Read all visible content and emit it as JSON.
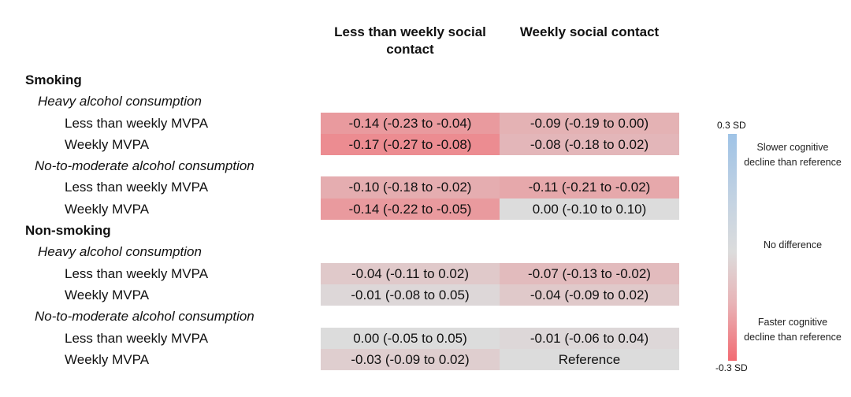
{
  "chart_data": {
    "type": "heatmap",
    "title": "",
    "column_headers": [
      "Less than weekly social contact",
      "Weekly social contact"
    ],
    "rows": [
      {
        "level": 0,
        "label": "Smoking",
        "cells": null
      },
      {
        "level": 1,
        "label": "Heavy alcohol consumption",
        "cells": null
      },
      {
        "level": 2,
        "label": "Less than weekly MVPA",
        "cells": [
          {
            "text": "-0.14 (-0.23 to -0.04)",
            "value": -0.14
          },
          {
            "text": "-0.09 (-0.19 to 0.00)",
            "value": -0.09
          }
        ]
      },
      {
        "level": 2,
        "label": "Weekly MVPA",
        "cells": [
          {
            "text": "-0.17 (-0.27 to -0.08)",
            "value": -0.17
          },
          {
            "text": "-0.08 (-0.18 to 0.02)",
            "value": -0.08
          }
        ]
      },
      {
        "level": 1,
        "label": "No-to-moderate alcohol consumption",
        "cells": null
      },
      {
        "level": 2,
        "label": "Less than weekly MVPA",
        "cells": [
          {
            "text": "-0.10 (-0.18 to -0.02)",
            "value": -0.1
          },
          {
            "text": "-0.11 (-0.21 to -0.02)",
            "value": -0.11
          }
        ]
      },
      {
        "level": 2,
        "label": "Weekly MVPA",
        "cells": [
          {
            "text": "-0.14 (-0.22 to -0.05)",
            "value": -0.14
          },
          {
            "text": "0.00 (-0.10 to 0.10)",
            "value": 0.0
          }
        ]
      },
      {
        "level": 0,
        "label": "Non-smoking",
        "cells": null
      },
      {
        "level": 1,
        "label": "Heavy alcohol consumption",
        "cells": null
      },
      {
        "level": 2,
        "label": "Less than weekly MVPA",
        "cells": [
          {
            "text": "-0.04 (-0.11 to 0.02)",
            "value": -0.04
          },
          {
            "text": "-0.07 (-0.13 to -0.02)",
            "value": -0.07
          }
        ]
      },
      {
        "level": 2,
        "label": "Weekly MVPA",
        "cells": [
          {
            "text": "-0.01 (-0.08 to 0.05)",
            "value": -0.01
          },
          {
            "text": "-0.04 (-0.09 to 0.02)",
            "value": -0.04
          }
        ]
      },
      {
        "level": 1,
        "label": "No-to-moderate alcohol consumption",
        "cells": null
      },
      {
        "level": 2,
        "label": "Less than weekly MVPA",
        "cells": [
          {
            "text": "0.00 (-0.05 to 0.05)",
            "value": 0.0
          },
          {
            "text": "-0.01 (-0.06 to 0.04)",
            "value": -0.01
          }
        ]
      },
      {
        "level": 2,
        "label": "Weekly MVPA",
        "cells": [
          {
            "text": "-0.03 (-0.09 to 0.02)",
            "value": -0.03
          },
          {
            "text": "Reference",
            "value": 0.0
          }
        ]
      }
    ],
    "color_scale": {
      "min": -0.3,
      "max": 0.3,
      "unit": "SD",
      "min_color": "#f26b72",
      "mid_color": "#dcdcdc",
      "max_color": "#9fc3e6"
    },
    "legend": {
      "top_label": "0.3 SD",
      "bottom_label": "-0.3 SD",
      "slower_text": "Slower cognitive decline than reference",
      "none_text": "No difference",
      "faster_text": "Faster cognitive decline than reference",
      "placement": "right"
    }
  }
}
